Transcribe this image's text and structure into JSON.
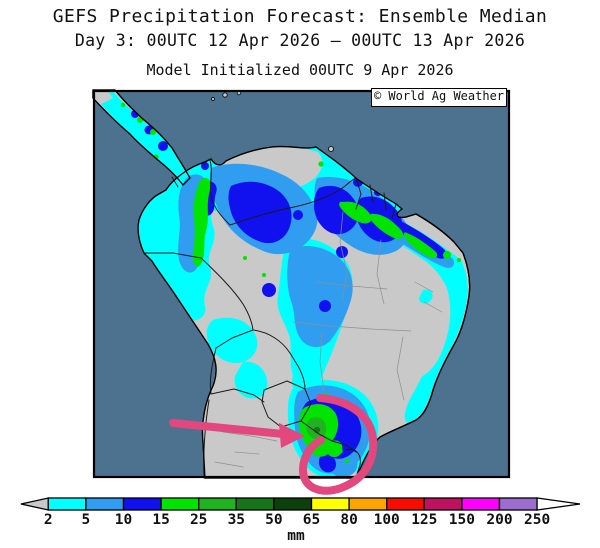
{
  "header": {
    "title": "GEFS Precipitation Forecast: Ensemble Median",
    "subtitle": "Day 3: 00UTC 12 Apr 2026 – 00UTC 13 Apr 2026",
    "initialization": "Model Initialized 00UTC 9 Apr 2026"
  },
  "map": {
    "copyright": "© World Ag Weather",
    "region": "South America",
    "colors": {
      "ocean": "#4C7290",
      "land": "#C9C9C9",
      "annotation": "#E2477E"
    },
    "annotations": [
      "highlight-arrow",
      "highlight-circle"
    ]
  },
  "colorbar": {
    "unit": "mm",
    "ticks": [
      "2",
      "5",
      "10",
      "15",
      "25",
      "35",
      "50",
      "65",
      "80",
      "100",
      "125",
      "150",
      "200",
      "250"
    ],
    "colors": [
      "#00FFFF",
      "#319DF0",
      "#1111F0",
      "#00E400",
      "#20B220",
      "#187418",
      "#0D400D",
      "#FFFF00",
      "#FFA300",
      "#F80C00",
      "#BE1160",
      "#FF00FF",
      "#9C6CCE"
    ],
    "underflow_color": "#C9C9C9",
    "overflow_color": "#FFFFFF"
  }
}
